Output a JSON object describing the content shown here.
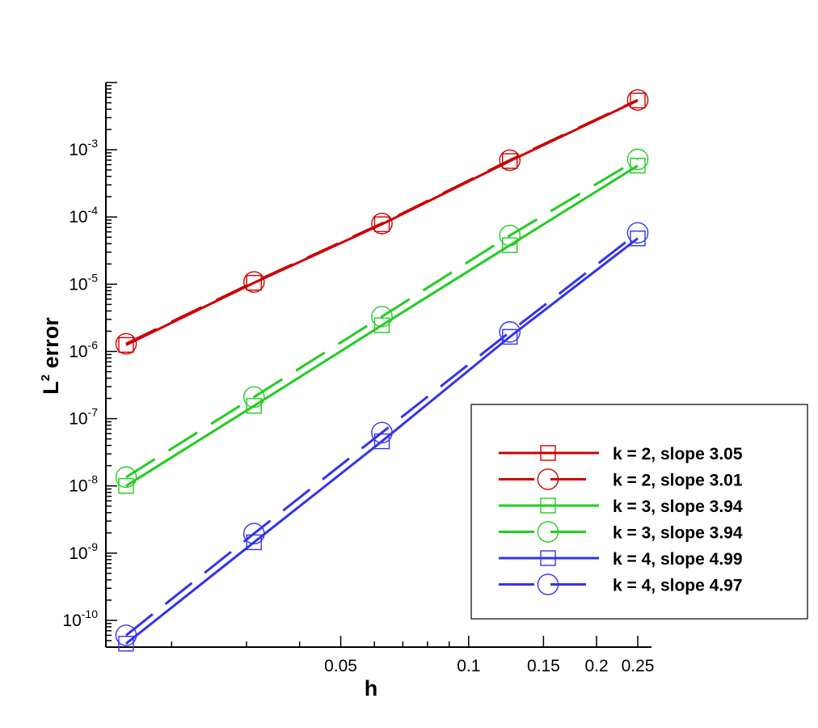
{
  "chart_data": {
    "type": "line",
    "xlabel": "h",
    "ylabel": {
      "base": "L",
      "sup": "2",
      "rest": " error"
    },
    "xscale": "log",
    "yscale": "log",
    "xlim": [
      0.015625,
      0.25
    ],
    "ylim": [
      4e-11,
      0.01
    ],
    "grid": false,
    "legend_position": "bottom-right",
    "x": [
      0.015625,
      0.03125,
      0.0625,
      0.125,
      0.25
    ],
    "x_ticks": [
      {
        "value": 0.05,
        "label": "0.05"
      },
      {
        "value": 0.1,
        "label": "0.1"
      },
      {
        "value": 0.15,
        "label": "0.15"
      },
      {
        "value": 0.2,
        "label": "0.2"
      },
      {
        "value": 0.25,
        "label": "0.25"
      }
    ],
    "y_ticks": [
      {
        "value": 0.001,
        "base": "10",
        "exp": "-3"
      },
      {
        "value": 0.0001,
        "base": "10",
        "exp": "-4"
      },
      {
        "value": 1e-05,
        "base": "10",
        "exp": "-5"
      },
      {
        "value": 1e-06,
        "base": "10",
        "exp": "-6"
      },
      {
        "value": 1e-07,
        "base": "10",
        "exp": "-7"
      },
      {
        "value": 1e-08,
        "base": "10",
        "exp": "-8"
      },
      {
        "value": 1e-09,
        "base": "10",
        "exp": "-9"
      },
      {
        "value": 1e-10,
        "base": "10",
        "exp": "-10"
      }
    ],
    "series": [
      {
        "name": "k = 2, slope 3.05",
        "color": "#cc0000",
        "marker": "square",
        "dash": false,
        "values": [
          1.25e-06,
          1.05e-05,
          7.8e-05,
          0.00068,
          0.0054
        ]
      },
      {
        "name": "k = 2, slope 3.01",
        "color": "#cc0000",
        "marker": "circle",
        "dash": true,
        "values": [
          1.3e-06,
          1.08e-05,
          8e-05,
          0.0007,
          0.0055
        ]
      },
      {
        "name": "k = 3, slope 3.94",
        "color": "#22cc22",
        "marker": "square",
        "dash": false,
        "values": [
          1e-08,
          1.55e-07,
          2.45e-06,
          3.8e-05,
          0.00058
        ]
      },
      {
        "name": "k = 3, slope 3.94",
        "color": "#22cc22",
        "marker": "circle",
        "dash": true,
        "values": [
          1.35e-08,
          2.1e-07,
          3.3e-06,
          5.3e-05,
          0.00072
        ]
      },
      {
        "name": "k = 4, slope 4.99",
        "color": "#3333ee",
        "marker": "square",
        "dash": false,
        "values": [
          4.5e-11,
          1.45e-09,
          4.6e-08,
          1.65e-06,
          4.8e-05
        ]
      },
      {
        "name": "k = 4, slope 4.97",
        "color": "#3333ee",
        "marker": "circle",
        "dash": true,
        "values": [
          6e-11,
          1.95e-09,
          6.2e-08,
          1.95e-06,
          5.8e-05
        ]
      }
    ]
  }
}
